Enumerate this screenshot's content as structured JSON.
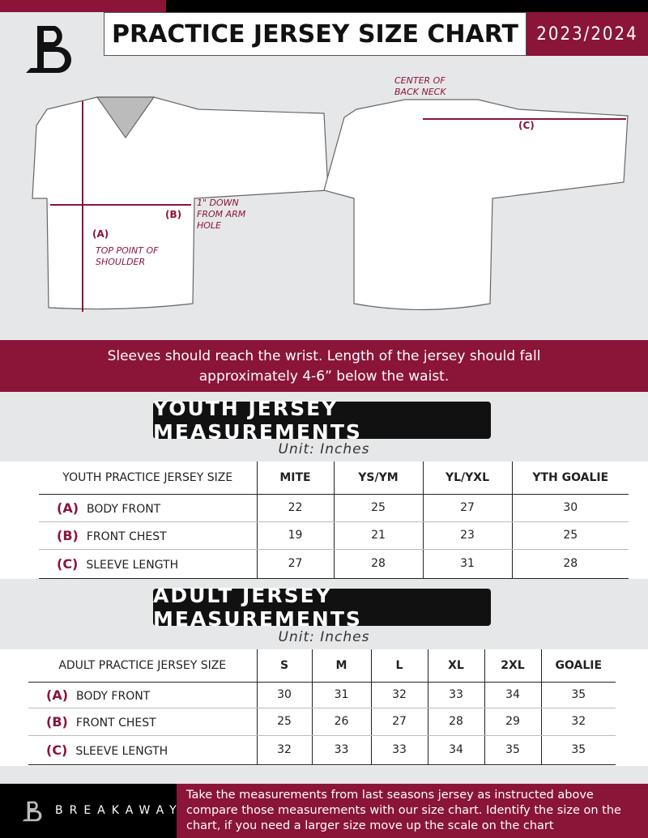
{
  "header": {
    "title": "PRACTICE JERSEY SIZE CHART",
    "season": "2023/2024",
    "logo": "B"
  },
  "colors": {
    "brand": "#8a1538",
    "dark": "#111111",
    "background": "#e6e7e8"
  },
  "diagram": {
    "label_a": "(A)",
    "note_a": "TOP POINT OF SHOULDER",
    "label_b": "(B)",
    "note_b": "1\" DOWN FROM ARM HOLE",
    "label_c": "(C)",
    "note_c": "CENTER OF BACK NECK"
  },
  "banner": {
    "line1": "Sleeves should reach the wrist. Length of the jersey should fall",
    "line2": "approximately 4-6” below the waist."
  },
  "youth": {
    "title": "YOUTH JERSEY MEASUREMENTS",
    "unit": "Unit: Inches",
    "columns": [
      "YOUTH PRACTICE JERSEY SIZE",
      "MITE",
      "YS/YM",
      "YL/YXL",
      "YTH GOALIE"
    ],
    "rows": [
      {
        "key": "(A)",
        "label": "BODY FRONT",
        "values": [
          "22",
          "25",
          "27",
          "30"
        ]
      },
      {
        "key": "(B)",
        "label": "FRONT CHEST",
        "values": [
          "19",
          "21",
          "23",
          "25"
        ]
      },
      {
        "key": "(C)",
        "label": "SLEEVE LENGTH",
        "values": [
          "27",
          "28",
          "31",
          "28"
        ]
      }
    ]
  },
  "adult": {
    "title": "ADULT JERSEY MEASUREMENTS",
    "unit": "Unit: Inches",
    "columns": [
      "ADULT PRACTICE JERSEY SIZE",
      "S",
      "M",
      "L",
      "XL",
      "2XL",
      "GOALIE"
    ],
    "rows": [
      {
        "key": "(A)",
        "label": "BODY FRONT",
        "values": [
          "30",
          "31",
          "32",
          "33",
          "34",
          "35"
        ]
      },
      {
        "key": "(B)",
        "label": "FRONT CHEST",
        "values": [
          "25",
          "26",
          "27",
          "28",
          "29",
          "32"
        ]
      },
      {
        "key": "(C)",
        "label": "SLEEVE LENGTH",
        "values": [
          "32",
          "33",
          "33",
          "34",
          "35",
          "35"
        ]
      }
    ]
  },
  "footer": {
    "brand": "BREAKAWAY",
    "text": "Take the measurements from last seasons jersey as instructed above compare those measurements  with our size chart. Identify the size on the chart, if you need a larger size move up the scale on the chart"
  }
}
